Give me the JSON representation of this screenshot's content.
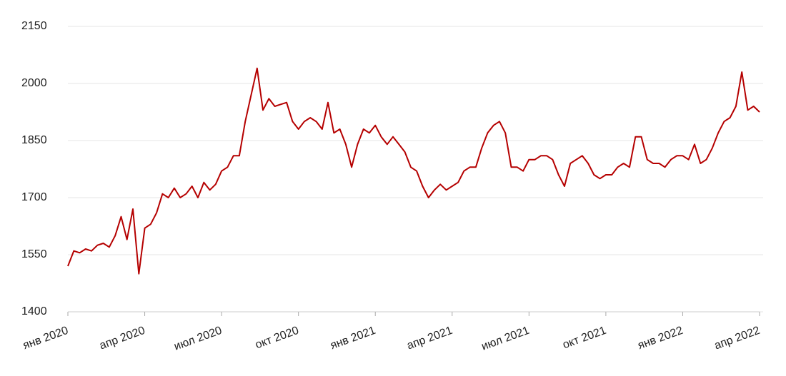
{
  "chart_data": {
    "type": "line",
    "categories": [
      "янв 2020",
      null,
      null,
      null,
      null,
      null,
      null,
      null,
      null,
      null,
      null,
      null,
      null,
      "апр 2020",
      null,
      null,
      null,
      null,
      null,
      null,
      null,
      null,
      null,
      null,
      null,
      null,
      "июл 2020",
      null,
      null,
      null,
      null,
      null,
      null,
      null,
      null,
      null,
      null,
      null,
      null,
      "окт 2020",
      null,
      null,
      null,
      null,
      null,
      null,
      null,
      null,
      null,
      null,
      null,
      null,
      "янв 2021",
      null,
      null,
      null,
      null,
      null,
      null,
      null,
      null,
      null,
      null,
      null,
      null,
      "апр 2021",
      null,
      null,
      null,
      null,
      null,
      null,
      null,
      null,
      null,
      null,
      null,
      null,
      "июл 2021",
      null,
      null,
      null,
      null,
      null,
      null,
      null,
      null,
      null,
      null,
      null,
      null,
      "окт 2021",
      null,
      null,
      null,
      null,
      null,
      null,
      null,
      null,
      null,
      null,
      null,
      null,
      "янв 2022",
      null,
      null,
      null,
      null,
      null,
      null,
      null,
      null,
      null,
      null,
      null,
      null,
      "апр 2022"
    ],
    "series": [
      {
        "color": "#b50000",
        "values": [
          1520,
          1560,
          1555,
          1565,
          1560,
          1575,
          1580,
          1570,
          1600,
          1650,
          1590,
          1670,
          1500,
          1620,
          1630,
          1660,
          1710,
          1700,
          1725,
          1700,
          1710,
          1730,
          1700,
          1740,
          1720,
          1735,
          1770,
          1780,
          1810,
          1810,
          1900,
          1970,
          2040,
          1930,
          1960,
          1940,
          1945,
          1950,
          1900,
          1880,
          1900,
          1910,
          1900,
          1880,
          1950,
          1870,
          1880,
          1840,
          1780,
          1840,
          1880,
          1870,
          1890,
          1860,
          1840,
          1860,
          1840,
          1820,
          1780,
          1770,
          1730,
          1700,
          1720,
          1735,
          1720,
          1730,
          1740,
          1770,
          1780,
          1780,
          1830,
          1870,
          1890,
          1900,
          1870,
          1780,
          1780,
          1770,
          1800,
          1800,
          1810,
          1810,
          1800,
          1760,
          1730,
          1790,
          1800,
          1810,
          1790,
          1760,
          1750,
          1760,
          1760,
          1780,
          1790,
          1780,
          1860,
          1860,
          1800,
          1790,
          1790,
          1780,
          1800,
          1810,
          1810,
          1800,
          1840,
          1790,
          1800,
          1830,
          1870,
          1900,
          1910,
          1940,
          2030,
          1930,
          1940,
          1925
        ]
      }
    ],
    "ylim": [
      1400,
      2150
    ],
    "yticks": [
      1400,
      1550,
      1700,
      1850,
      2000,
      2150
    ],
    "grid": true
  }
}
